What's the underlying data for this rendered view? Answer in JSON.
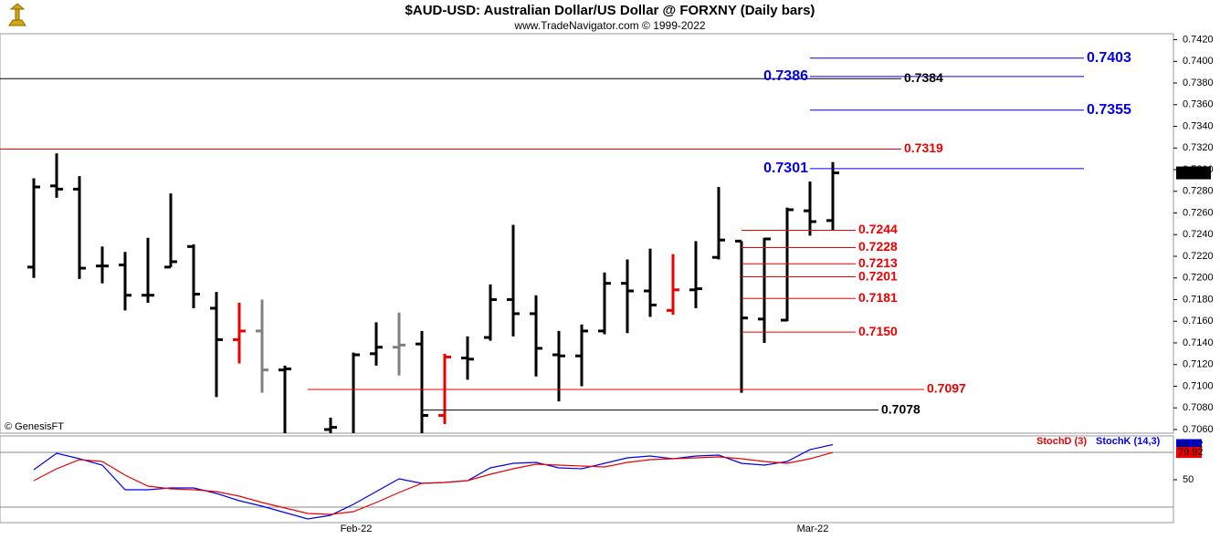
{
  "chart_data": [
    {
      "type": "ohlc",
      "title": "$AUD-USD:  Australian Dollar/US Dollar @ FORXNY  (Daily bars)",
      "subtitle": "www.TradeNavigator.com © 1999-2022",
      "watermark": "© GenesisFT",
      "categories": [
        null,
        null,
        null,
        null,
        null,
        null,
        null,
        null,
        null,
        null,
        null,
        null,
        null,
        null,
        "Feb-22",
        null,
        null,
        null,
        null,
        null,
        null,
        null,
        null,
        null,
        null,
        null,
        null,
        null,
        null,
        null,
        null,
        null,
        null,
        null,
        "Mar-22",
        null
      ],
      "open": [
        0.721,
        0.7285,
        0.7282,
        0.7211,
        0.7212,
        0.7184,
        0.721,
        0.7229,
        0.7172,
        0.7143,
        0.7151,
        0.7115,
        null,
        0.706,
        0.7052,
        0.713,
        0.7136,
        0.7139,
        0.7073,
        0.7126,
        0.7145,
        0.718,
        0.7167,
        0.7129,
        0.7128,
        0.7151,
        0.7195,
        0.7188,
        0.717,
        0.7189,
        0.7219,
        0.7234,
        0.7162,
        0.7161,
        0.7262,
        0.7253
      ],
      "high": [
        0.7292,
        0.7315,
        0.7294,
        0.7229,
        0.7224,
        0.7237,
        0.7278,
        0.7231,
        0.7187,
        0.7177,
        0.718,
        0.7119,
        null,
        0.7071,
        0.7131,
        0.7159,
        0.7168,
        0.7151,
        0.713,
        0.7146,
        0.7194,
        0.7249,
        0.7184,
        0.7151,
        0.7157,
        0.7205,
        0.7217,
        0.7227,
        0.7222,
        0.7234,
        0.7284,
        0.7234,
        0.7237,
        0.7265,
        0.7289,
        0.7307
      ],
      "low": [
        0.72,
        0.7274,
        0.7199,
        0.7195,
        0.717,
        0.7177,
        0.721,
        0.7172,
        0.709,
        0.7121,
        0.7094,
        0.705,
        null,
        0.705,
        0.705,
        0.7119,
        0.711,
        0.7056,
        0.7065,
        0.7106,
        0.7142,
        0.7146,
        0.7109,
        0.7086,
        0.71,
        0.7148,
        0.7149,
        0.7164,
        0.7166,
        0.7172,
        0.7217,
        0.7094,
        0.714,
        0.716,
        0.7239,
        0.7244
      ],
      "close": [
        0.7284,
        0.7282,
        0.7209,
        0.7211,
        0.7184,
        0.7184,
        0.7215,
        0.7185,
        0.7143,
        0.7151,
        0.7115,
        0.7116,
        null,
        0.7062,
        0.7129,
        0.7136,
        0.7138,
        0.7073,
        0.7127,
        0.7125,
        0.718,
        0.7167,
        0.7135,
        0.7128,
        0.7151,
        0.7195,
        0.7188,
        0.7175,
        0.7189,
        0.719,
        0.7235,
        0.7163,
        0.7236,
        0.7263,
        0.7252,
        0.7297
      ],
      "colors": [
        "#000000",
        "#000000",
        "#000000",
        "#000000",
        "#000000",
        "#000000",
        "#000000",
        "#000000",
        "#000000",
        "#ee0000",
        "#808080",
        "#000000",
        "#000000",
        "#000000",
        "#000000",
        "#000000",
        "#808080",
        "#000000",
        "#ee0000",
        "#000000",
        "#000000",
        "#000000",
        "#000000",
        "#000000",
        "#000000",
        "#000000",
        "#000000",
        "#000000",
        "#ee0000",
        "#000000",
        "#000000",
        "#000000",
        "#000000",
        "#000000",
        "#000000",
        "#000000"
      ],
      "levels": [
        {
          "value": 0.7403,
          "color": "#0000ee",
          "from": 34,
          "to": 46
        },
        {
          "value": 0.7386,
          "color": "#0000ee",
          "from": 34,
          "to": 46,
          "label_side": "left"
        },
        {
          "value": 0.7384,
          "color": "#000000",
          "to": 38
        },
        {
          "value": 0.7355,
          "color": "#0000ee",
          "from": 34,
          "to": 46
        },
        {
          "value": 0.7319,
          "color": "#ee0000",
          "to": 38
        },
        {
          "value": 0.7301,
          "color": "#0000ee",
          "from": 34,
          "to": 46,
          "label_side": "left"
        },
        {
          "value": 0.7244,
          "color": "#ee0000",
          "from": 31,
          "to": 36
        },
        {
          "value": 0.7228,
          "color": "#ee0000",
          "from": 31,
          "to": 36
        },
        {
          "value": 0.7213,
          "color": "#ee0000",
          "from": 31,
          "to": 36
        },
        {
          "value": 0.7201,
          "color": "#ee0000",
          "from": 31,
          "to": 36
        },
        {
          "value": 0.7181,
          "color": "#ee0000",
          "from": 31,
          "to": 36
        },
        {
          "value": 0.715,
          "label": "0.7150",
          "color": "#ee0000",
          "from": 31,
          "to": 36
        },
        {
          "value": 0.7097,
          "color": "#ee0000",
          "from": 12,
          "to": 39
        },
        {
          "value": 0.7078,
          "color": "#000000",
          "from": 17,
          "to": 37
        }
      ],
      "ylim": [
        0.70566,
        0.74255
      ],
      "yticks": [
        {
          "value": 0.706,
          "label": "0.7060"
        },
        {
          "value": 0.708,
          "label": "0.7080"
        },
        {
          "value": 0.71,
          "label": "0.7100"
        },
        {
          "value": 0.712,
          "label": "0.7120"
        },
        {
          "value": 0.714,
          "label": "0.7140"
        },
        {
          "value": 0.716,
          "label": "0.7160"
        },
        {
          "value": 0.718,
          "label": "0.7180"
        },
        {
          "value": 0.72,
          "label": "0.7200"
        },
        {
          "value": 0.722,
          "label": "0.7220"
        },
        {
          "value": 0.724,
          "label": "0.7240"
        },
        {
          "value": 0.726,
          "label": "0.7260"
        },
        {
          "value": 0.728,
          "label": "0.7280"
        },
        {
          "value": 0.73,
          "label": "0.7300"
        },
        {
          "value": 0.732,
          "label": "0.7320"
        },
        {
          "value": 0.734,
          "label": "0.7340"
        },
        {
          "value": 0.736,
          "label": "0.7360"
        },
        {
          "value": 0.738,
          "label": "0.7380"
        },
        {
          "value": 0.74,
          "label": "0.7400"
        },
        {
          "value": 0.742,
          "label": "0.7420"
        }
      ]
    },
    {
      "type": "line",
      "series": [
        {
          "name": "StochK (14,3)",
          "color": "#0000ee",
          "values": [
            61,
            79,
            73,
            66,
            39,
            39,
            41,
            41,
            35,
            27,
            21,
            14,
            7,
            11,
            23,
            37,
            51,
            46,
            47,
            49,
            63,
            68,
            69,
            63,
            62,
            68,
            74,
            76,
            73,
            76,
            77,
            68,
            66,
            70,
            83,
            88.52
          ]
        },
        {
          "name": "StochD (3)",
          "color": "#ee0000",
          "values": [
            49,
            62,
            72,
            70,
            55,
            43,
            40,
            39,
            37,
            32,
            25,
            19,
            13,
            12,
            15,
            25,
            36,
            46,
            47,
            49,
            56,
            62,
            67,
            66,
            65,
            64,
            69,
            72,
            73,
            74,
            75,
            73,
            70,
            68,
            73,
            79.92
          ]
        }
      ],
      "levels": [
        20,
        80
      ],
      "ylim": [
        3,
        98
      ],
      "yticks": [
        50
      ]
    }
  ]
}
